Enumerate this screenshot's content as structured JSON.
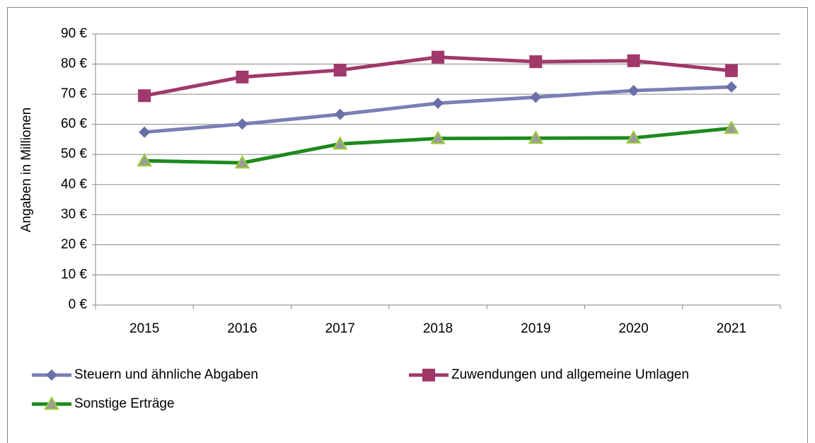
{
  "chart_data": {
    "type": "line",
    "y_label": "Angaben in Millionen",
    "categories": [
      "2015",
      "2016",
      "2017",
      "2018",
      "2019",
      "2020",
      "2021"
    ],
    "series": [
      {
        "name": "Steuern und ähnliche Abgaben",
        "color": "#7b7fb5",
        "marker": "diamond",
        "marker_color": "#6a6fa8",
        "values": [
          57.4,
          60.1,
          63.3,
          67.0,
          69.0,
          71.2,
          72.4
        ]
      },
      {
        "name": "Zuwendungen und allgemeine Umlagen",
        "color": "#a0386a",
        "marker": "square",
        "marker_color": "#a0386a",
        "values": [
          69.5,
          75.7,
          78.0,
          82.3,
          80.8,
          81.1,
          77.8
        ]
      },
      {
        "name": "Sonstige Erträge",
        "color": "#1e8a1e",
        "marker": "triangle",
        "marker_color": "#9b9b9b",
        "values": [
          47.9,
          47.2,
          53.5,
          55.3,
          55.4,
          55.5,
          58.7
        ]
      }
    ],
    "ylim": [
      0,
      90
    ],
    "yticks": [
      {
        "value": 0,
        "label": "0 €"
      },
      {
        "value": 10,
        "label": "10 €"
      },
      {
        "value": 20,
        "label": "20 €"
      },
      {
        "value": 30,
        "label": "30 €"
      },
      {
        "value": 40,
        "label": "40 €"
      },
      {
        "value": 50,
        "label": "50 €"
      },
      {
        "value": 60,
        "label": "60 €"
      },
      {
        "value": 70,
        "label": "70 €"
      },
      {
        "value": 80,
        "label": "80 €"
      },
      {
        "value": 90,
        "label": "90 €"
      }
    ],
    "grid": true,
    "legend": "bottom"
  }
}
